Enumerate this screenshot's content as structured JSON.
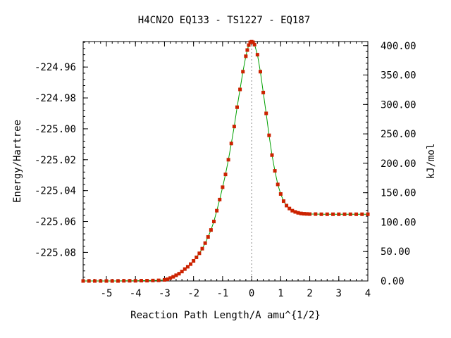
{
  "chart_data": {
    "type": "line",
    "title": "H4CN2O   EQ133 - TS1227 - EQ187",
    "xlabel": "Reaction Path Length/A amu^{1/2}",
    "ylabel": "Energy/Hartree",
    "y2label": "kJ/mol",
    "xlim": [
      -5.8,
      4.0
    ],
    "ylim": [
      -225.0985,
      -224.9435
    ],
    "y2lim": [
      0.0,
      406.9
    ],
    "x_ticks": [
      -5,
      -4,
      -3,
      -2,
      -1,
      0,
      1,
      2,
      3,
      4
    ],
    "x_tick_labels": [
      "-5",
      "-4",
      "-3",
      "-2",
      "-1",
      "0",
      "1",
      "2",
      "3",
      "4"
    ],
    "y_ticks": [
      -224.96,
      -224.98,
      -225.0,
      -225.02,
      -225.04,
      -225.06,
      -225.08
    ],
    "y_tick_labels": [
      "-224.96",
      "-224.98",
      "-225.00",
      "-225.02",
      "-225.04",
      "-225.06",
      "-225.08"
    ],
    "y2_ticks": [
      0,
      50,
      100,
      150,
      200,
      250,
      300,
      350,
      400
    ],
    "y2_tick_labels": [
      "0.00",
      "50.00",
      "100.00",
      "150.00",
      "200.00",
      "250.00",
      "300.00",
      "350.00",
      "400.00"
    ],
    "ts_x": 0.0,
    "grid": false,
    "legend": "none",
    "series": [
      {
        "line_color": "#00a000",
        "marker_color": "#cc2200",
        "points": [
          [
            -5.8,
            -225.0985
          ],
          [
            -5.6,
            -225.0985
          ],
          [
            -5.4,
            -225.0985
          ],
          [
            -5.2,
            -225.0985
          ],
          [
            -5.0,
            -225.0985
          ],
          [
            -4.8,
            -225.0985
          ],
          [
            -4.6,
            -225.0985
          ],
          [
            -4.4,
            -225.0984
          ],
          [
            -4.2,
            -225.0984
          ],
          [
            -4.0,
            -225.0984
          ],
          [
            -3.8,
            -225.0983
          ],
          [
            -3.6,
            -225.0983
          ],
          [
            -3.4,
            -225.0982
          ],
          [
            -3.2,
            -225.0981
          ],
          [
            -3.0,
            -225.0978
          ],
          [
            -2.9,
            -225.0974
          ],
          [
            -2.8,
            -225.0966
          ],
          [
            -2.7,
            -225.0958
          ],
          [
            -2.6,
            -225.0948
          ],
          [
            -2.5,
            -225.0938
          ],
          [
            -2.4,
            -225.0924
          ],
          [
            -2.3,
            -225.0908
          ],
          [
            -2.2,
            -225.0893
          ],
          [
            -2.1,
            -225.0876
          ],
          [
            -2.0,
            -225.0855
          ],
          [
            -1.9,
            -225.0832
          ],
          [
            -1.8,
            -225.0806
          ],
          [
            -1.7,
            -225.0776
          ],
          [
            -1.6,
            -225.074
          ],
          [
            -1.5,
            -225.07
          ],
          [
            -1.4,
            -225.0655
          ],
          [
            -1.3,
            -225.06
          ],
          [
            -1.2,
            -225.053
          ],
          [
            -1.1,
            -225.0458
          ],
          [
            -1.0,
            -225.0378
          ],
          [
            -0.9,
            -225.0295
          ],
          [
            -0.8,
            -225.02
          ],
          [
            -0.7,
            -225.0095
          ],
          [
            -0.6,
            -224.9985
          ],
          [
            -0.5,
            -224.986
          ],
          [
            -0.4,
            -224.9745
          ],
          [
            -0.3,
            -224.963
          ],
          [
            -0.2,
            -224.953
          ],
          [
            -0.15,
            -224.949
          ],
          [
            -0.1,
            -224.9458
          ],
          [
            -0.05,
            -224.944
          ],
          [
            0.0,
            -224.9436
          ],
          [
            0.05,
            -224.944
          ],
          [
            0.1,
            -224.9455
          ],
          [
            0.2,
            -224.952
          ],
          [
            0.3,
            -224.963
          ],
          [
            0.4,
            -224.9765
          ],
          [
            0.5,
            -224.99
          ],
          [
            0.6,
            -225.0042
          ],
          [
            0.7,
            -225.017
          ],
          [
            0.8,
            -225.0272
          ],
          [
            0.9,
            -225.036
          ],
          [
            1.0,
            -225.0422
          ],
          [
            1.1,
            -225.0468
          ],
          [
            1.2,
            -225.0497
          ],
          [
            1.3,
            -225.0516
          ],
          [
            1.4,
            -225.053
          ],
          [
            1.5,
            -225.0538
          ],
          [
            1.6,
            -225.0544
          ],
          [
            1.7,
            -225.0548
          ],
          [
            1.8,
            -225.055
          ],
          [
            1.9,
            -225.0551
          ],
          [
            2.0,
            -225.0552
          ],
          [
            2.2,
            -225.0552
          ],
          [
            2.4,
            -225.0553
          ],
          [
            2.6,
            -225.0553
          ],
          [
            2.8,
            -225.0553
          ],
          [
            3.0,
            -225.0553
          ],
          [
            3.2,
            -225.0553
          ],
          [
            3.4,
            -225.0553
          ],
          [
            3.6,
            -225.0553
          ],
          [
            3.8,
            -225.0553
          ],
          [
            4.0,
            -225.0553
          ]
        ]
      }
    ]
  }
}
